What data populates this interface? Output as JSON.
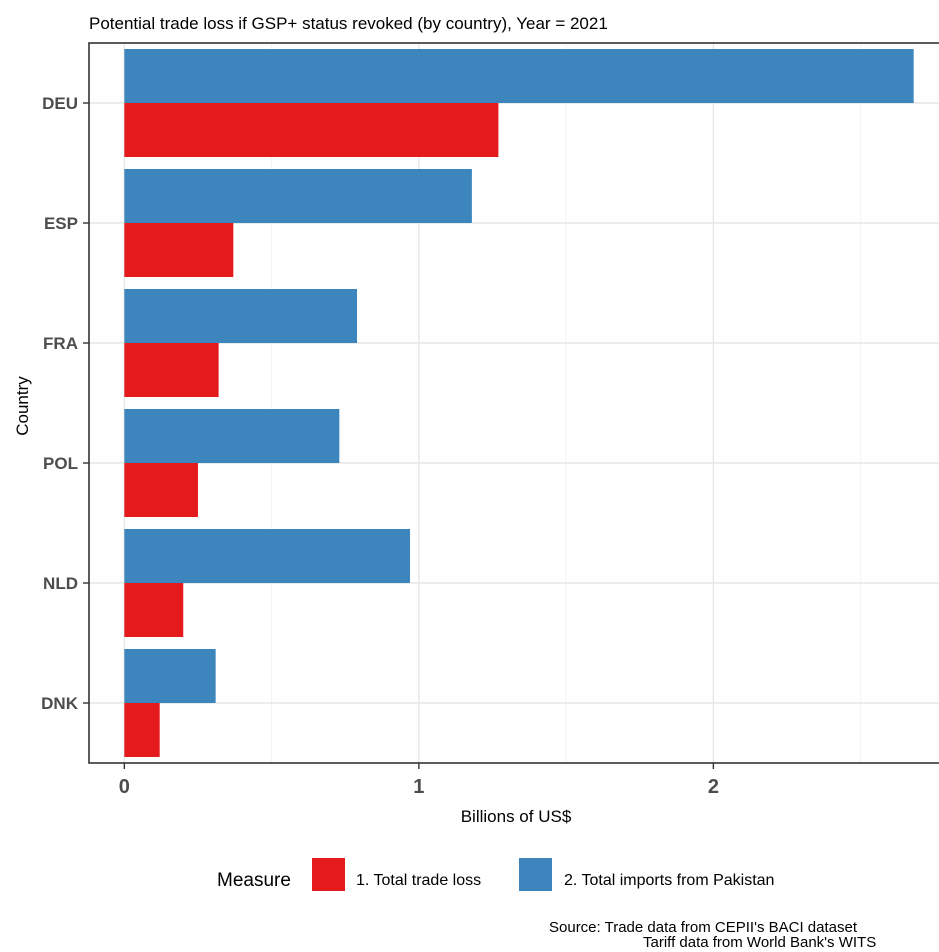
{
  "chart_data": {
    "type": "bar",
    "orientation": "horizontal",
    "title": "Potential trade loss if GSP+ status revoked (by country), Year = 2021",
    "xlabel": "Billions of US$",
    "ylabel": "Country",
    "categories": [
      "DEU",
      "ESP",
      "FRA",
      "POL",
      "NLD",
      "DNK"
    ],
    "series": [
      {
        "name": "1. Total trade loss",
        "color": "#e41a1c",
        "values": [
          1.27,
          0.37,
          0.32,
          0.25,
          0.2,
          0.12
        ]
      },
      {
        "name": "2. Total imports from Pakistan",
        "color": "#3d85bd",
        "values": [
          2.68,
          1.18,
          0.79,
          0.73,
          0.97,
          0.31
        ]
      }
    ],
    "xlim": [
      -0.12,
      2.8
    ],
    "xticks": [
      "0",
      "1",
      "2"
    ],
    "grid": true,
    "legend": {
      "title": "Measure",
      "position": "bottom"
    }
  },
  "caption": {
    "line1": "Source: Trade data from CEPII's BACI dataset",
    "line2": "Tariff data from World Bank's WITS"
  }
}
